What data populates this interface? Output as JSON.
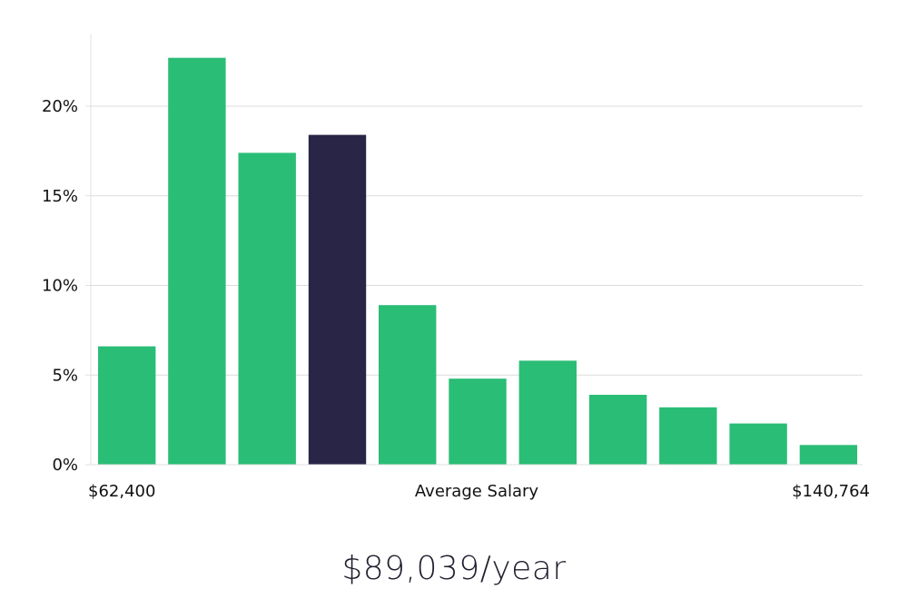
{
  "chart_data": {
    "type": "bar",
    "title": "",
    "xlabel": "Average Salary",
    "ylabel": "",
    "x_range_labels": {
      "min": "$62,400",
      "max": "$140,764"
    },
    "ylim": [
      0,
      24
    ],
    "y_ticks": [
      0,
      5,
      10,
      15,
      20
    ],
    "y_tick_labels": [
      "0%",
      "5%",
      "10%",
      "15%",
      "20%"
    ],
    "values": [
      6.6,
      22.7,
      17.4,
      18.4,
      8.9,
      4.8,
      5.8,
      3.9,
      3.2,
      2.3,
      1.1
    ],
    "highlight_index": 3,
    "colors": {
      "default": "#2abd76",
      "highlight": "#282546"
    },
    "grid": true
  },
  "summary": {
    "average_salary": "$89,039/year"
  }
}
